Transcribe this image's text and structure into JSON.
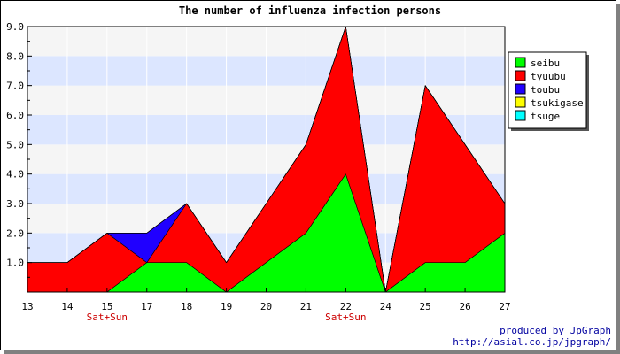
{
  "chart_data": {
    "type": "area",
    "stacked": true,
    "title": "The number of influenza infection persons",
    "xlabel": "",
    "ylabel": "",
    "categories": [
      "13",
      "14",
      "15",
      "17",
      "18",
      "19",
      "20",
      "21",
      "22",
      "24",
      "25",
      "26",
      "27"
    ],
    "category_notes": [
      "",
      "",
      "Sat+Sun",
      "",
      "",
      "",
      "",
      "",
      "Sat+Sun",
      "",
      "",
      "",
      ""
    ],
    "ylim": [
      0,
      9
    ],
    "yticks": [
      "1.0",
      "2.0",
      "3.0",
      "4.0",
      "5.0",
      "6.0",
      "7.0",
      "8.0",
      "9.0"
    ],
    "series": [
      {
        "name": "seibu",
        "color": "#00ff00",
        "values": [
          0,
          0,
          0,
          1,
          1,
          0,
          1,
          2,
          4,
          0,
          1,
          1,
          2
        ]
      },
      {
        "name": "tyuubu",
        "color": "#ff0000",
        "values": [
          1,
          1,
          2,
          0,
          2,
          1,
          2,
          3,
          5,
          0,
          6,
          4,
          1
        ]
      },
      {
        "name": "toubu",
        "color": "#2000ff",
        "values": [
          0,
          0,
          0,
          1,
          0,
          0,
          0,
          0,
          0,
          0,
          0,
          0,
          0
        ]
      },
      {
        "name": "tsukigase",
        "color": "#ffff00",
        "values": [
          0,
          0,
          0,
          0,
          0,
          0,
          0,
          0,
          0,
          0,
          0,
          0,
          0
        ]
      },
      {
        "name": "tsuge",
        "color": "#00ffff",
        "values": [
          0,
          0,
          0,
          0,
          0,
          0,
          0,
          0,
          0,
          0,
          0,
          0,
          0
        ]
      }
    ],
    "grid": true,
    "grid_band_colors": [
      "#f5f5f5",
      "#dce6ff"
    ],
    "note_color": "#cc0000",
    "legend_position": "right"
  },
  "footer": {
    "line1": "produced by JpGraph",
    "line2": "http://asial.co.jp/jpgraph/"
  }
}
